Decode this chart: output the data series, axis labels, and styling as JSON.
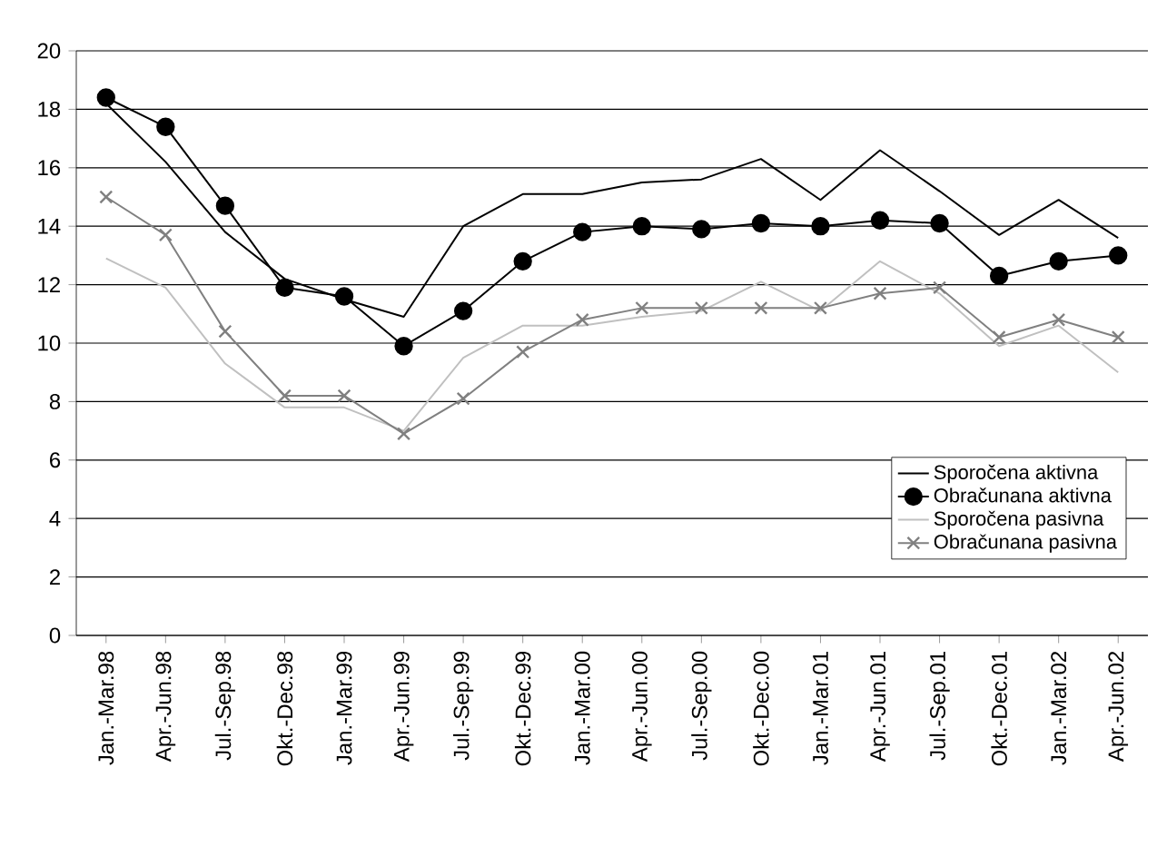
{
  "chart_data": {
    "type": "line",
    "categories": [
      "Jan.-Mar.98",
      "Apr.-Jun.98",
      "Jul.-Sep.98",
      "Okt.-Dec.98",
      "Jan.-Mar.99",
      "Apr.-Jun.99",
      "Jul.-Sep.99",
      "Okt.-Dec.99",
      "Jan.-Mar.00",
      "Apr.-Jun.00",
      "Jul.-Sep.00",
      "Okt.-Dec.00",
      "Jan.-Mar.01",
      "Apr.-Jun.01",
      "Jul.-Sep.01",
      "Okt.-Dec.01",
      "Jan.-Mar.02",
      "Apr.-Jun.02"
    ],
    "series": [
      {
        "name": "Sporočena aktivna",
        "color": "#000000",
        "marker": "none",
        "values": [
          18.2,
          16.2,
          13.8,
          12.2,
          11.5,
          10.9,
          14.0,
          15.1,
          15.1,
          15.5,
          15.6,
          16.3,
          14.9,
          16.6,
          15.2,
          13.7,
          14.9,
          13.6
        ]
      },
      {
        "name": "Obračunana aktivna",
        "color": "#000000",
        "marker": "circle",
        "values": [
          18.4,
          17.4,
          14.7,
          11.9,
          11.6,
          9.9,
          11.1,
          12.8,
          13.8,
          14.0,
          13.9,
          14.1,
          14.0,
          14.2,
          14.1,
          12.3,
          12.8,
          13.0
        ]
      },
      {
        "name": "Sporočena pasivna",
        "color": "#c0c0c0",
        "marker": "none",
        "values": [
          12.9,
          11.9,
          9.3,
          7.8,
          7.8,
          7.0,
          9.5,
          10.6,
          10.6,
          10.9,
          11.1,
          12.1,
          11.1,
          12.8,
          11.7,
          9.9,
          10.6,
          9.0
        ]
      },
      {
        "name": "Obračunana pasivna",
        "color": "#808080",
        "marker": "cross",
        "values": [
          15.0,
          13.7,
          10.4,
          8.2,
          8.2,
          6.9,
          8.1,
          9.7,
          10.8,
          11.2,
          11.2,
          11.2,
          11.2,
          11.7,
          11.9,
          10.2,
          10.8,
          10.2
        ]
      }
    ],
    "ylim": [
      0,
      20
    ],
    "yticks": [
      0,
      2,
      4,
      6,
      8,
      10,
      12,
      14,
      16,
      18,
      20
    ],
    "grid": "y",
    "legend": "right",
    "line_style": "solid"
  }
}
